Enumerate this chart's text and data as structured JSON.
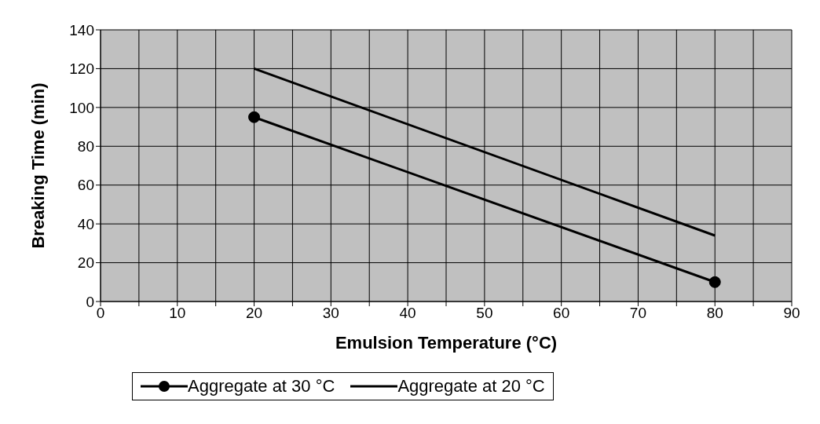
{
  "chart_data": {
    "type": "line",
    "xlabel": "Emulsion Temperature (°C)",
    "ylabel": "Breaking Time (min)",
    "xlim": [
      0,
      90
    ],
    "xticks": [
      0,
      {
        "value": 5,
        "label": null
      },
      10,
      {
        "value": 15,
        "label": null
      },
      20,
      {
        "value": 25,
        "label": null
      },
      30,
      {
        "value": 35,
        "label": null
      },
      40,
      {
        "value": 45,
        "label": null
      },
      50,
      {
        "value": 55,
        "label": null
      },
      60,
      {
        "value": 65,
        "label": null
      },
      70,
      {
        "value": 75,
        "label": null
      },
      80,
      {
        "value": 85,
        "label": null
      },
      90
    ],
    "ylim": [
      0,
      140
    ],
    "yticks": [
      0,
      20,
      40,
      60,
      80,
      100,
      120,
      140
    ],
    "grid": true,
    "legend": "bottom",
    "line_style": "solid",
    "x": [
      20,
      80
    ],
    "series": [
      {
        "name": "Aggregate at 30 °C",
        "color": "#000000",
        "values": [
          95,
          10
        ],
        "marker": "circle"
      },
      {
        "name": "Aggregate at 20 °C",
        "color": "#000000",
        "values": [
          120,
          34
        ],
        "marker": "none"
      }
    ]
  }
}
